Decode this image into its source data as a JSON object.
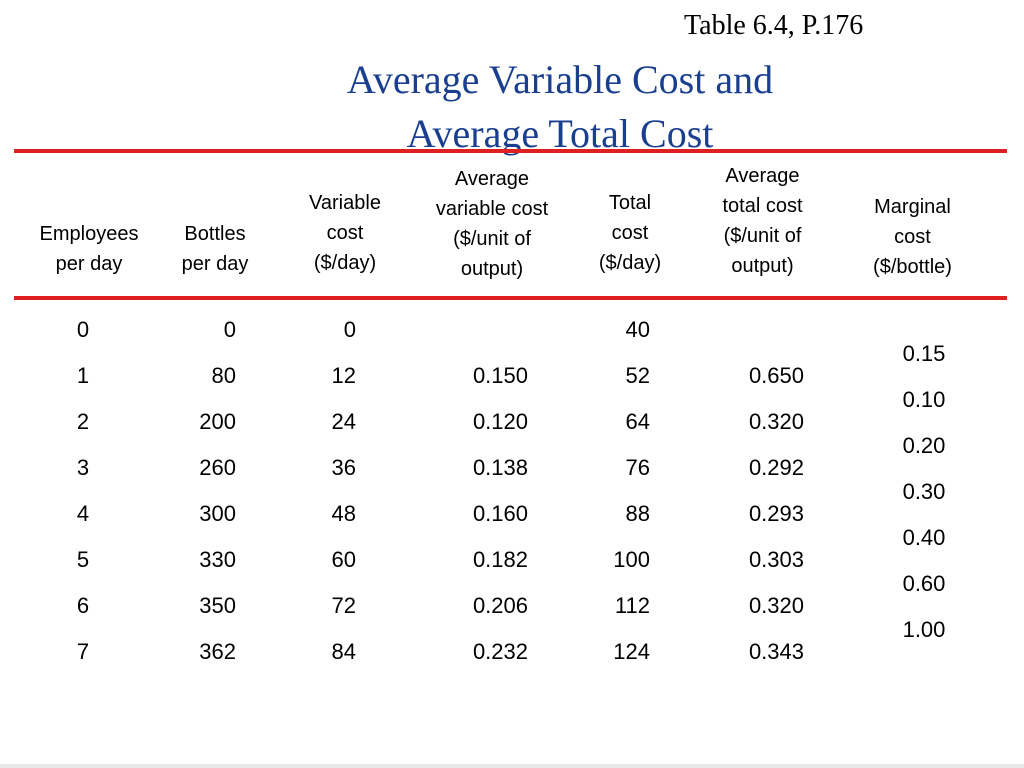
{
  "slide": {
    "reference": "Table 6.4, P.176",
    "title_line1": "Average Variable Cost and",
    "title_line2": "Average Total Cost"
  },
  "table": {
    "headers": [
      [
        "Employees",
        "per day"
      ],
      [
        "Bottles",
        "per day"
      ],
      [
        "Variable",
        "cost",
        "($/day)"
      ],
      [
        "Average",
        "variable cost",
        "($/unit of",
        "output)"
      ],
      [
        "Total",
        "cost",
        "($/day)"
      ],
      [
        "Average",
        "total cost",
        "($/unit of",
        "output)"
      ],
      [
        "Marginal",
        "cost",
        "($/bottle)"
      ]
    ],
    "rows": [
      {
        "employees": "0",
        "bottles": "0",
        "variable_cost": "0",
        "avg_variable_cost": "",
        "total_cost": "40",
        "avg_total_cost": ""
      },
      {
        "employees": "1",
        "bottles": "80",
        "variable_cost": "12",
        "avg_variable_cost": "0.150",
        "total_cost": "52",
        "avg_total_cost": "0.650"
      },
      {
        "employees": "2",
        "bottles": "200",
        "variable_cost": "24",
        "avg_variable_cost": "0.120",
        "total_cost": "64",
        "avg_total_cost": "0.320"
      },
      {
        "employees": "3",
        "bottles": "260",
        "variable_cost": "36",
        "avg_variable_cost": "0.138",
        "total_cost": "76",
        "avg_total_cost": "0.292"
      },
      {
        "employees": "4",
        "bottles": "300",
        "variable_cost": "48",
        "avg_variable_cost": "0.160",
        "total_cost": "88",
        "avg_total_cost": "0.293"
      },
      {
        "employees": "5",
        "bottles": "330",
        "variable_cost": "60",
        "avg_variable_cost": "0.182",
        "total_cost": "100",
        "avg_total_cost": "0.303"
      },
      {
        "employees": "6",
        "bottles": "350",
        "variable_cost": "72",
        "avg_variable_cost": "0.206",
        "total_cost": "112",
        "avg_total_cost": "0.320"
      },
      {
        "employees": "7",
        "bottles": "362",
        "variable_cost": "84",
        "avg_variable_cost": "0.232",
        "total_cost": "124",
        "avg_total_cost": "0.343"
      }
    ],
    "marginal_cost": [
      "0.15",
      "0.10",
      "0.20",
      "0.30",
      "0.40",
      "0.60",
      "1.00"
    ]
  },
  "colors": {
    "title": "#1a3f8f",
    "rule": "#e02020"
  }
}
